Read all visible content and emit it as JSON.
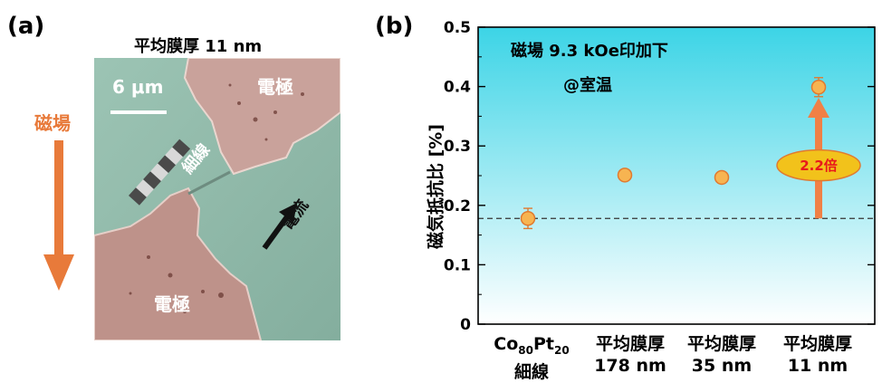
{
  "panel_a": {
    "label": "(a)",
    "title": "平均膜厚 11 nm",
    "scale_bar": "6 μm",
    "electrode_top": "電極",
    "electrode_bottom": "電極",
    "wire_label": "細線",
    "current_label": "電流",
    "field_label": "磁場",
    "colors": {
      "field_arrow": "#E87A3A",
      "substrate": "#8FB8A8",
      "electrode": "#C8A09A"
    }
  },
  "panel_b": {
    "label": "(b)",
    "annotation_line1": "磁場 9.3 kOe印加下",
    "annotation_line2": "@室温",
    "ratio_label": "2.2倍",
    "x_categories": [
      {
        "line1_base1": "Co",
        "line1_sub1": "80",
        "line1_base2": "Pt",
        "line1_sub2": "20",
        "line2": "細線"
      },
      {
        "line1": "平均膜厚",
        "line2": "178 nm"
      },
      {
        "line1": "平均膜厚",
        "line2": "35 nm"
      },
      {
        "line1": "平均膜厚",
        "line2": "11 nm"
      }
    ]
  },
  "chart_data": {
    "type": "scatter",
    "ylabel": "磁気抵抗比 [%]",
    "ylim": [
      0,
      0.5
    ],
    "yticks": [
      "0",
      "0.1",
      "0.2",
      "0.3",
      "0.4",
      "0.5"
    ],
    "categories": [
      "Co80Pt20 細線",
      "平均膜厚 178 nm",
      "平均膜厚 35 nm",
      "平均膜厚 11 nm"
    ],
    "values": [
      0.178,
      0.251,
      0.247,
      0.399
    ],
    "errors": [
      0.017,
      0.004,
      0.004,
      0.016
    ],
    "reference_line": 0.178,
    "arrow_from": 0.178,
    "arrow_to": 0.375,
    "colors": {
      "marker": "#F7B451",
      "marker_edge": "#E07A30",
      "arrow": "#F08046",
      "bg_top": "#3CD4E6",
      "bg_bottom": "#FFFFFF",
      "ellipse": "#F2C21B"
    }
  }
}
